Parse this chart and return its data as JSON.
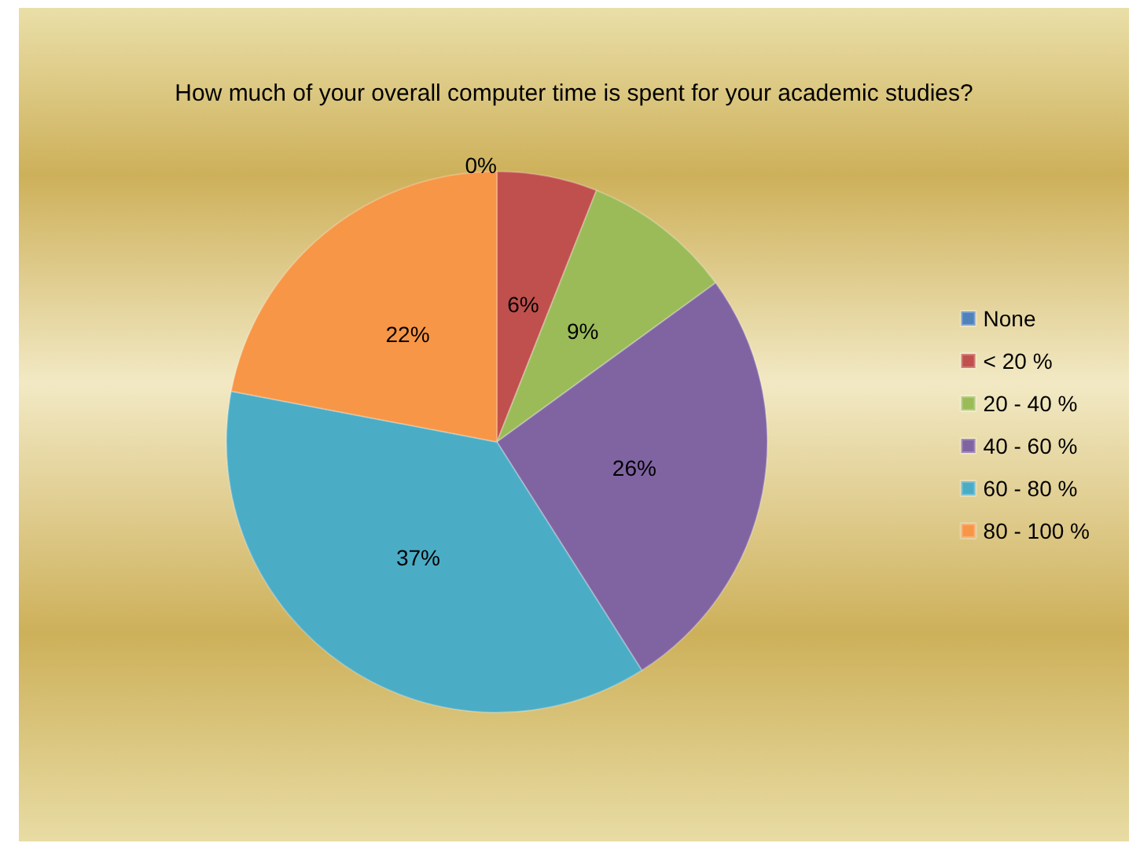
{
  "chart_data": {
    "type": "pie",
    "title": "How much of your overall computer time is spent for your academic studies?",
    "categories": [
      "None",
      "< 20 %",
      "20 - 40 %",
      "40 - 60 %",
      "60 - 80 %",
      "80 - 100 %"
    ],
    "values": [
      0,
      6,
      9,
      26,
      37,
      22
    ],
    "colors": [
      "#4f81bd",
      "#c0504d",
      "#9bbb59",
      "#8064a2",
      "#4bacc6",
      "#f79646"
    ],
    "value_labels": [
      "0%",
      "6%",
      "9%",
      "26%",
      "37%",
      "22%"
    ],
    "legend": "right"
  }
}
